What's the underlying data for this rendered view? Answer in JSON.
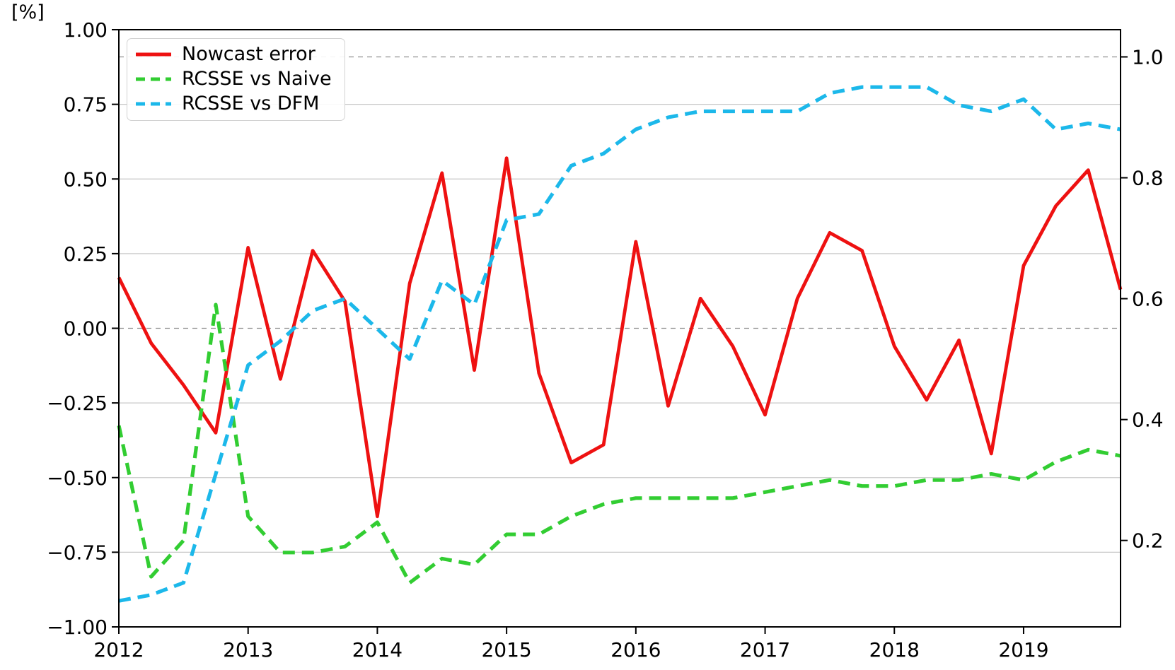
{
  "legend": {
    "items": [
      {
        "label": "Nowcast error",
        "color": "#ee1111",
        "style": "solid"
      },
      {
        "label": "RCSSE vs Naive",
        "color": "#32cd32",
        "style": "dashed"
      },
      {
        "label": "RCSSE vs DFM",
        "color": "#1cb8ea",
        "style": "dashed"
      }
    ]
  },
  "chart_data": {
    "type": "line",
    "x": [
      2012.0,
      2012.25,
      2012.5,
      2012.75,
      2013.0,
      2013.25,
      2013.5,
      2013.75,
      2014.0,
      2014.25,
      2014.5,
      2014.75,
      2015.0,
      2015.25,
      2015.5,
      2015.75,
      2016.0,
      2016.25,
      2016.5,
      2016.75,
      2017.0,
      2017.25,
      2017.5,
      2017.75,
      2018.0,
      2018.25,
      2018.5,
      2018.75,
      2019.0,
      2019.25,
      2019.5,
      2019.75
    ],
    "x_axis": {
      "ticks": [
        2012,
        2013,
        2014,
        2015,
        2016,
        2017,
        2018,
        2019
      ],
      "tick_labels": [
        "2012",
        "2013",
        "2014",
        "2015",
        "2016",
        "2017",
        "2018",
        "2019"
      ],
      "xlim": [
        2012,
        2019.75
      ]
    },
    "left_axis": {
      "unit": "[%]",
      "ticks": [
        1.0,
        0.75,
        0.5,
        0.25,
        0.0,
        -0.25,
        -0.5,
        -0.75,
        -1.0
      ],
      "tick_labels": [
        "1.00",
        "0.75",
        "0.50",
        "0.25",
        "0.00",
        "−0.25",
        "−0.50",
        "−0.75",
        "−1.00"
      ],
      "ylim": [
        -1.0,
        1.0
      ]
    },
    "right_axis": {
      "ticks": [
        1.0,
        0.8,
        0.6,
        0.4,
        0.2
      ],
      "tick_labels": [
        "1.0",
        "0.8",
        "0.6",
        "0.4",
        "0.2"
      ],
      "ylim": [
        0.057,
        1.045
      ]
    },
    "grid": {
      "solid_left_values": [
        0.75,
        0.5,
        0.25,
        -0.25,
        -0.5,
        -0.75
      ],
      "dashed_left_value": 0.0,
      "dashed_right_value": 1.0,
      "solid_color": "#c8c8c8",
      "dashed_color": "#8f8f8f"
    },
    "legend_position": "upper left",
    "series": [
      {
        "name": "Nowcast error",
        "axis": "left",
        "style": "solid",
        "color": "#ee1111",
        "values": [
          0.17,
          -0.05,
          -0.19,
          -0.35,
          0.27,
          -0.17,
          0.26,
          0.09,
          -0.63,
          0.15,
          0.52,
          -0.14,
          0.57,
          -0.15,
          -0.45,
          -0.39,
          0.29,
          -0.26,
          0.1,
          -0.06,
          -0.29,
          0.1,
          0.32,
          0.26,
          -0.06,
          -0.24,
          -0.04,
          -0.42,
          0.21,
          0.41,
          0.53,
          0.13
        ]
      },
      {
        "name": "RCSSE vs Naive",
        "axis": "right",
        "style": "dashed",
        "color": "#32cd32",
        "values": [
          0.39,
          0.14,
          0.2,
          0.59,
          0.24,
          0.18,
          0.18,
          0.19,
          0.23,
          0.13,
          0.17,
          0.16,
          0.21,
          0.21,
          0.24,
          0.26,
          0.27,
          0.27,
          0.27,
          0.27,
          0.28,
          0.29,
          0.3,
          0.29,
          0.29,
          0.3,
          0.3,
          0.31,
          0.3,
          0.33,
          0.35,
          0.34
        ]
      },
      {
        "name": "RCSSE vs DFM",
        "axis": "right",
        "style": "dashed",
        "color": "#1cb8ea",
        "values": [
          0.1,
          0.11,
          0.13,
          0.31,
          0.49,
          0.53,
          0.58,
          0.6,
          0.55,
          0.5,
          0.63,
          0.59,
          0.73,
          0.74,
          0.82,
          0.84,
          0.88,
          0.9,
          0.91,
          0.91,
          0.91,
          0.91,
          0.94,
          0.95,
          0.95,
          0.95,
          0.92,
          0.91,
          0.93,
          0.88,
          0.89,
          0.88
        ]
      }
    ]
  }
}
